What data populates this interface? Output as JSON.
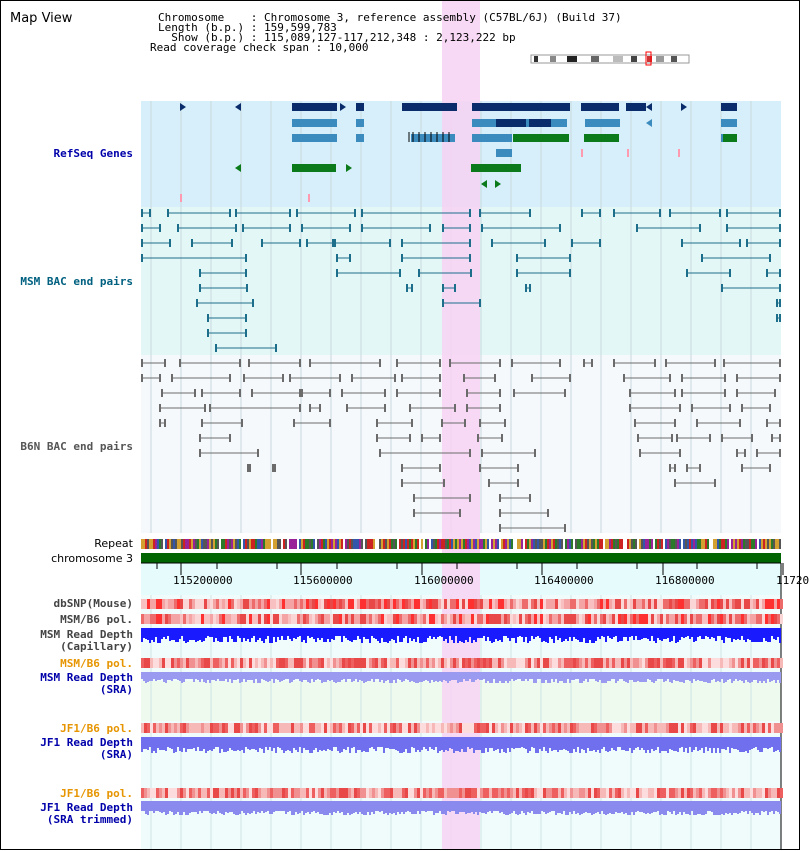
{
  "view_title": "Map View",
  "header": {
    "chromosome_line": "Chromosome    : Chromosome 3, reference assembly (C57BL/6J) (Build 37)",
    "length_line": "Length (b.p.) : 159,599,783",
    "show_line": "  Show (b.p.) : 115,089,127-117,212,348 : 2,123,222 bp",
    "coverage_line": "Read coverage check span : 10,000"
  },
  "tracks": {
    "refseq": "RefSeq Genes",
    "msm_bac": "MSM BAC end pairs",
    "b6n_bac": "B6N BAC end pairs",
    "repeat": "Repeat",
    "chromosome": "chromosome 3",
    "dbsnp": "dbSNP(Mouse)",
    "msm_b6_pol_1": "MSM/B6 pol.",
    "msm_depth_cap": "MSM Read Depth\n(Capillary)",
    "msm_b6_pol_2": "MSM/B6 pol.",
    "msm_depth_sra": "MSM Read Depth\n(SRA)",
    "jf1_b6_pol_1": "JF1/B6 pol.",
    "jf1_depth_sra": "JF1 Read Depth\n(SRA)",
    "jf1_b6_pol_2": "JF1/B6 pol.",
    "jf1_depth_trim": "JF1 Read Depth\n(SRA trimmed)"
  },
  "axis_ticks": [
    "115200000",
    "115600000",
    "116000000",
    "116400000",
    "116800000",
    "11720"
  ],
  "colors": {
    "refseq_label": "#0000aa",
    "msm_label": "#006080",
    "b6n_label": "#555555",
    "pol_orange": "#e69500",
    "depth_blue": "#0000aa",
    "highlight": "#f7d2f3",
    "refseq_bg": "#d6effa",
    "msm_bg": "#e3f7f7",
    "chrom_green": "#006400"
  }
}
